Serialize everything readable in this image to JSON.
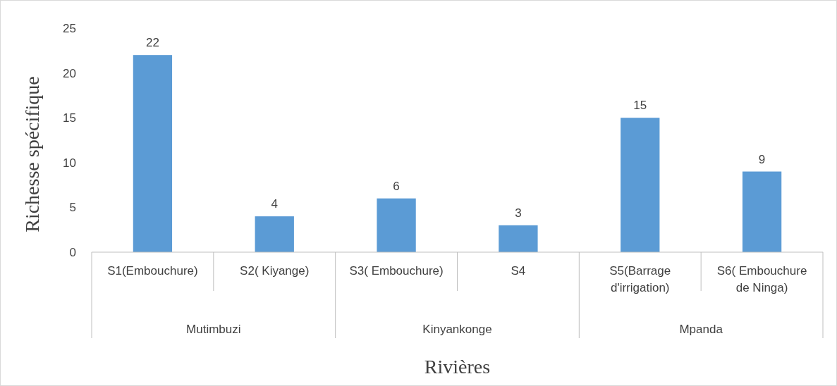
{
  "chart_data": {
    "type": "bar",
    "xlabel": "Rivières",
    "ylabel": "Richesse spécifique",
    "categories": [
      "S1(Embouchure)",
      "S2( Kiyange)",
      "S3( Embouchure)",
      "S4",
      "S5(Barrage d'irrigation)",
      "S6( Embouchure de Ninga)"
    ],
    "values": [
      22,
      4,
      6,
      3,
      15,
      9
    ],
    "color": "#5b9bd5",
    "data_labels": true,
    "ylim": [
      0,
      25
    ],
    "yticks": [
      0,
      5,
      10,
      15,
      20,
      25
    ],
    "annotations": [
      "Mutimbuzi",
      "Kinyankonge",
      "Mpanda"
    ]
  }
}
